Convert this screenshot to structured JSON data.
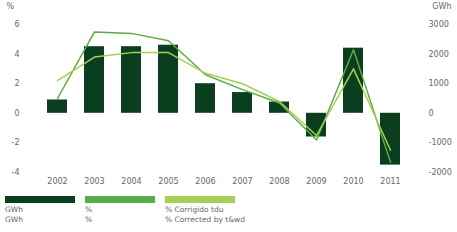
{
  "chart_data": {
    "type": "bar",
    "categories": [
      "2002",
      "2003",
      "2004",
      "2005",
      "2006",
      "2007",
      "2008",
      "2009",
      "2010",
      "2011"
    ],
    "y_label": "%",
    "y2_label": "GWh",
    "ylim": [
      -4,
      6
    ],
    "yticks": [
      -4,
      -2,
      0,
      2,
      4,
      6
    ],
    "y2lim": [
      -2000,
      3000
    ],
    "y2ticks": [
      -2000,
      -1000,
      0,
      1000,
      2000,
      3000
    ],
    "grid": false,
    "series": [
      {
        "name": "GWh",
        "name_en": "GWh",
        "type": "bar",
        "axis": "y2",
        "color": "#0b3d1f",
        "values": [
          450,
          2250,
          2250,
          2300,
          1000,
          700,
          380,
          -800,
          2200,
          -1750
        ]
      },
      {
        "name": "%",
        "name_en": "%",
        "type": "line",
        "color": "#5aad45",
        "values": [
          1.0,
          5.5,
          5.4,
          4.9,
          2.6,
          1.6,
          0.7,
          -1.8,
          4.3,
          -3.3
        ]
      },
      {
        "name": "% Corrigido tdu",
        "name_en": "% Corrected by t&wd",
        "type": "line",
        "color": "#a6d052",
        "values": [
          2.2,
          3.8,
          4.1,
          4.1,
          2.7,
          2.0,
          0.8,
          -1.5,
          3.0,
          -2.5
        ]
      }
    ]
  }
}
